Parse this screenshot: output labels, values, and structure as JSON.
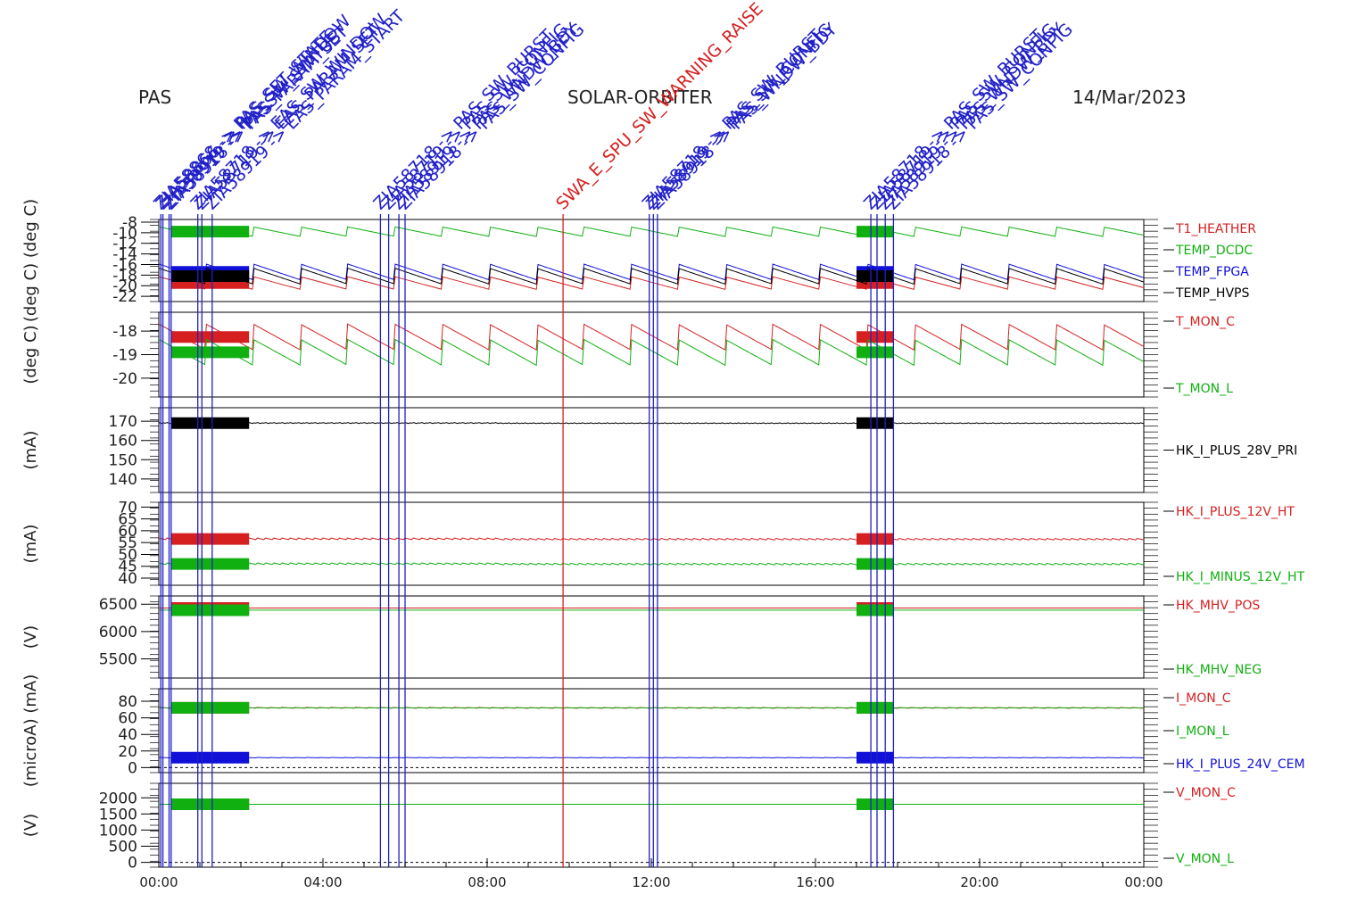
{
  "header": {
    "left": "PAS",
    "center": "SOLAR-ORBITER",
    "right": "14/Mar/2023"
  },
  "colors": {
    "red": "#d62020",
    "green": "#10b010",
    "blue": "#1010d8",
    "black": "#000000",
    "annotation_blue": "#2020c8",
    "annotation_red": "#d62020"
  },
  "x_axis": {
    "range_hours": [
      0,
      24
    ],
    "ticks": [
      {
        "hour": 0,
        "label": "00:00"
      },
      {
        "hour": 4,
        "label": "04:00"
      },
      {
        "hour": 8,
        "label": "08:00"
      },
      {
        "hour": 12,
        "label": "12:00"
      },
      {
        "hour": 16,
        "label": "16:00"
      },
      {
        "hour": 20,
        "label": "20:00"
      },
      {
        "hour": 24,
        "label": "00:00"
      }
    ]
  },
  "annotations": [
    {
      "hour": 0.05,
      "color": "blue",
      "label": "ZIA58868 -> PAS_SET_STATE"
    },
    {
      "hour": 0.1,
      "color": "blue",
      "label": "ZIA58866 -> PAS_SW_WINDOW"
    },
    {
      "hour": 0.25,
      "color": "blue",
      "label": "ZIA58919 -> PASSW_STATUS"
    },
    {
      "hour": 0.3,
      "color": "blue",
      "label": "ZIA58918 -> PAS_PARAM_SET"
    },
    {
      "hour": 0.95,
      "color": "blue",
      "label": "ZIA58718 -> EAS_SW_WINDOW"
    },
    {
      "hour": 1.05,
      "color": "blue",
      "label": "ZIA58719 -> EAS_PARAM_SET"
    },
    {
      "hour": 1.3,
      "color": "blue",
      "label": "ZIA58919 -> EAS_PARAM_START"
    },
    {
      "hour": 5.4,
      "color": "blue",
      "label": "ZIA58718 -> PAS_SW_BURST"
    },
    {
      "hour": 5.6,
      "color": "blue",
      "label": "ZIA58719 -> PAS_SW_CONFIG"
    },
    {
      "hour": 5.85,
      "color": "blue",
      "label": "ZIA58919 -> PAS_WNDW_BDY"
    },
    {
      "hour": 6.0,
      "color": "blue",
      "label": "ZIA58918 -> PAS_SW_CONFIG"
    },
    {
      "hour": 9.85,
      "color": "red",
      "label": "SWA_E_SPU_SW_WARNING_RAISE"
    },
    {
      "hour": 11.95,
      "color": "blue",
      "label": "ZIA58718 -> PAS_SW_BURST"
    },
    {
      "hour": 12.05,
      "color": "blue",
      "label": "ZIA58919 -> PAS_SW_CONFIG"
    },
    {
      "hour": 12.15,
      "color": "blue",
      "label": "ZIA58918 -> PAS_WNDW_BDY"
    },
    {
      "hour": 17.35,
      "color": "blue",
      "label": "ZIA58718 -> PAS_SW_BURST"
    },
    {
      "hour": 17.5,
      "color": "blue",
      "label": "ZIA58719 -> PAS_SW_CONFIG"
    },
    {
      "hour": 17.7,
      "color": "blue",
      "label": "ZIA58919 -> PAS_WNDW_BDY"
    },
    {
      "hour": 17.9,
      "color": "blue",
      "label": "ZIA58918 -> PAS_SW_CONFIG"
    }
  ],
  "chart_data": [
    {
      "type": "line",
      "ylabel": "(deg C) (deg C)",
      "ylim": [
        -23,
        -7.5
      ],
      "y_ticks": [
        -8,
        -10,
        -12,
        -14,
        -16,
        -18,
        -20,
        -22
      ],
      "y_tick_labels": [
        "-8",
        "-10",
        "-12",
        "-14",
        "-16",
        "-18",
        "-20",
        "-22"
      ],
      "series": [
        {
          "name": "T1_HEATHER",
          "color": "red",
          "base": -19.5,
          "amp": 1.2,
          "period_h": 1.15
        },
        {
          "name": "TEMP_DCDC",
          "color": "green",
          "base": -9.8,
          "amp": 0.9,
          "period_h": 1.15
        },
        {
          "name": "TEMP_FPGA",
          "color": "blue",
          "base": -17.4,
          "amp": 1.5,
          "period_h": 1.15
        },
        {
          "name": "TEMP_HVPS",
          "color": "black",
          "base": -18.2,
          "amp": 1.5,
          "period_h": 1.15
        }
      ]
    },
    {
      "type": "line",
      "ylabel": "(deg C)",
      "ylim": [
        -20.8,
        -17.2
      ],
      "y_ticks": [
        -18,
        -19,
        -20
      ],
      "y_tick_labels": [
        "-18",
        "-19",
        "-20"
      ],
      "series": [
        {
          "name": "T_MON_C",
          "color": "red",
          "base": -18.25,
          "amp": 0.55,
          "period_h": 1.15
        },
        {
          "name": "T_MON_L",
          "color": "green",
          "base": -18.9,
          "amp": 0.55,
          "period_h": 1.15
        }
      ]
    },
    {
      "type": "line",
      "ylabel": "(mA)",
      "ylim": [
        133,
        177
      ],
      "y_ticks": [
        140,
        150,
        160,
        170
      ],
      "y_tick_labels": [
        "140",
        "150",
        "160",
        "170"
      ],
      "series": [
        {
          "name": "HK_I_PLUS_28V_PRI",
          "color": "black",
          "base": 169,
          "amp": 0.3,
          "period_h": 0.1
        }
      ]
    },
    {
      "type": "line",
      "ylabel": "(mA)",
      "ylim": [
        37,
        72
      ],
      "y_ticks": [
        40,
        45,
        50,
        55,
        60,
        65,
        70
      ],
      "y_tick_labels": [
        "40",
        "45",
        "50",
        "55",
        "60",
        "65",
        "70"
      ],
      "series": [
        {
          "name": "HK_I_PLUS_12V_HT",
          "color": "red",
          "base": 56.5,
          "amp": 0.4,
          "period_h": 0.2
        },
        {
          "name": "HK_I_MINUS_12V_HT",
          "color": "green",
          "base": 46,
          "amp": 0.4,
          "period_h": 0.2
        }
      ]
    },
    {
      "type": "line",
      "ylabel": "(V)",
      "ylim": [
        5150,
        6650
      ],
      "y_ticks": [
        5500,
        6000,
        6500
      ],
      "y_tick_labels": [
        "5500",
        "6000",
        "6500"
      ],
      "series": [
        {
          "name": "HK_MHV_POS",
          "color": "red",
          "base": 6430,
          "amp": 0,
          "period_h": 1
        },
        {
          "name": "HK_MHV_NEG",
          "color": "green",
          "base": 6390,
          "amp": 0,
          "period_h": 1
        }
      ]
    },
    {
      "type": "line",
      "ylabel": "(microA) (mA)",
      "ylim": [
        -6,
        95
      ],
      "y_ticks": [
        0,
        20,
        40,
        60,
        80
      ],
      "y_tick_labels": [
        "0",
        "20",
        "40",
        "60",
        "80"
      ],
      "series": [
        {
          "name": "I_MON_C",
          "color": "red",
          "base": 72,
          "amp": 0.6,
          "period_h": 0.3
        },
        {
          "name": "I_MON_L",
          "color": "green",
          "base": 72,
          "amp": 0,
          "period_h": 1
        },
        {
          "name": "HK_I_PLUS_24V_CEM",
          "color": "blue",
          "base": 12,
          "amp": 0.3,
          "period_h": 0.3
        }
      ]
    },
    {
      "type": "line",
      "ylabel": "(V)",
      "ylim": [
        -150,
        2450
      ],
      "y_ticks": [
        0,
        500,
        1000,
        1500,
        2000
      ],
      "y_tick_labels": [
        "0",
        "500",
        "1000",
        "1500",
        "2000"
      ],
      "series": [
        {
          "name": "V_MON_C",
          "color": "red",
          "base": 1800,
          "amp": 0,
          "period_h": 1
        },
        {
          "name": "V_MON_L",
          "color": "green",
          "base": 1800,
          "amp": 0,
          "period_h": 1
        }
      ]
    }
  ],
  "bursts_hours": [
    [
      0.3,
      2.2
    ],
    [
      17.0,
      17.9
    ]
  ]
}
